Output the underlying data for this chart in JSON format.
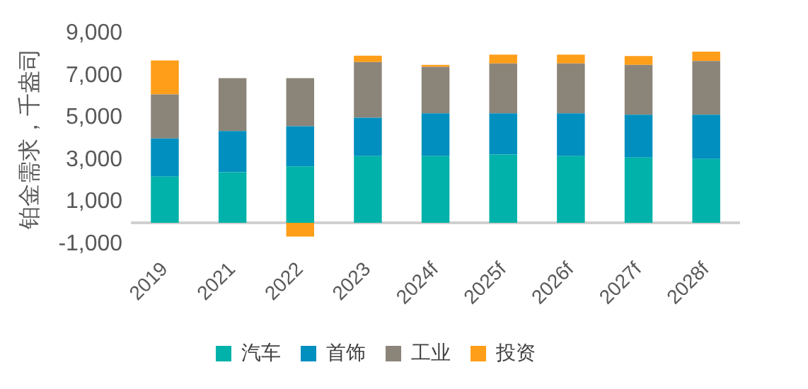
{
  "chart_data": {
    "type": "bar",
    "stacked": true,
    "ylabel": "铂金需求，千盎司",
    "categories": [
      "2019",
      "2021",
      "2022",
      "2023",
      "2024f",
      "2025f",
      "2026f",
      "2027f",
      "2028f"
    ],
    "series": [
      {
        "name": "汽车",
        "color": "#00b2a9",
        "values": [
          2190,
          2400,
          2680,
          3170,
          3170,
          3240,
          3170,
          3100,
          3030
        ]
      },
      {
        "name": "首饰",
        "color": "#008fbe",
        "values": [
          1820,
          1960,
          1910,
          1820,
          2030,
          1960,
          2030,
          2030,
          2100
        ]
      },
      {
        "name": "工业",
        "color": "#8b8479",
        "values": [
          2090,
          2510,
          2280,
          2650,
          2210,
          2370,
          2370,
          2370,
          2560
        ]
      },
      {
        "name": "投资",
        "color": "#ff9e18",
        "values": [
          1610,
          0,
          -660,
          300,
          90,
          420,
          420,
          420,
          440
        ]
      }
    ],
    "ylim": [
      -1000,
      9000
    ],
    "yticks": [
      {
        "value": -1000,
        "label": "-1,000"
      },
      {
        "value": 1000,
        "label": "1,000"
      },
      {
        "value": 3000,
        "label": "3,000"
      },
      {
        "value": 5000,
        "label": "5,000"
      },
      {
        "value": 7000,
        "label": "7,000"
      },
      {
        "value": 9000,
        "label": "9,000"
      }
    ],
    "grid": false,
    "legend": "bottom"
  }
}
